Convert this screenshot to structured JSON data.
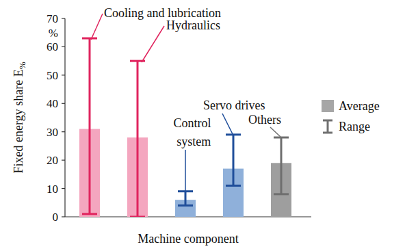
{
  "chart_data": {
    "type": "bar",
    "categories": [
      "Cooling and lubrication",
      "Hydraulics",
      "Control system",
      "Servo drives",
      "Others"
    ],
    "series": [
      {
        "name": "Average",
        "color": "#a6a6a6",
        "colors": [
          "#f4a6bf",
          "#f4a6bf",
          "#8fb0da",
          "#8fb0da",
          "#9e9e9e"
        ],
        "values": [
          31,
          28,
          6,
          17,
          19
        ]
      },
      {
        "name": "Range",
        "type": "errorbar",
        "color": "#707070",
        "colors": [
          "#e0245e",
          "#e0245e",
          "#1f4e9a",
          "#1f4e9a",
          "#6e6e6e"
        ],
        "low": [
          1,
          0,
          4,
          11,
          8
        ],
        "high": [
          63,
          55,
          9,
          29,
          28
        ]
      }
    ],
    "xlabel": "Machine component",
    "ylabel": "Fixed energy share E%",
    "y_unit": "%",
    "ylim": [
      0,
      70
    ],
    "yticks": [
      0,
      10,
      20,
      30,
      40,
      50,
      60,
      70
    ],
    "grid": false,
    "legend": "right",
    "tick_labels": "y"
  }
}
